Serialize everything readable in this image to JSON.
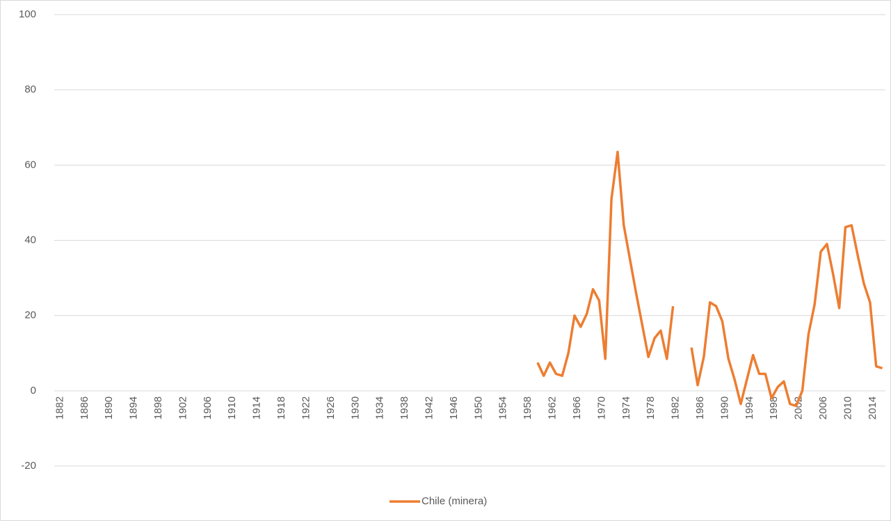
{
  "chart_data": {
    "type": "line",
    "categories": [
      "1882",
      null,
      null,
      null,
      "1886",
      null,
      null,
      null,
      "1890",
      null,
      null,
      null,
      "1894",
      null,
      null,
      null,
      "1898",
      null,
      null,
      null,
      "1902",
      null,
      null,
      null,
      "1906",
      null,
      null,
      null,
      "1910",
      null,
      null,
      null,
      "1914",
      null,
      null,
      null,
      "1918",
      null,
      null,
      null,
      "1922",
      null,
      null,
      null,
      "1926",
      null,
      null,
      null,
      "1930",
      null,
      null,
      null,
      "1934",
      null,
      null,
      null,
      "1938",
      null,
      null,
      null,
      "1942",
      null,
      null,
      null,
      "1946",
      null,
      null,
      null,
      "1950",
      null,
      null,
      null,
      "1954",
      null,
      null,
      null,
      "1958",
      null,
      null,
      null,
      "1962",
      null,
      null,
      null,
      "1966",
      null,
      null,
      null,
      "1970",
      null,
      null,
      null,
      "1974",
      null,
      null,
      null,
      "1978",
      null,
      null,
      null,
      "1982",
      null,
      null,
      null,
      "1986",
      null,
      null,
      null,
      "1990",
      null,
      null,
      null,
      "1994",
      null,
      null,
      null,
      "1998",
      null,
      null,
      null,
      "2002",
      null,
      null,
      null,
      "2006",
      null,
      null,
      null,
      "2010",
      null,
      null,
      null,
      "2014",
      null,
      null
    ],
    "series": [
      {
        "name": "Chile (minera)",
        "color": "#ed7d31",
        "values": [
          null,
          null,
          null,
          null,
          null,
          null,
          null,
          null,
          null,
          null,
          null,
          null,
          null,
          null,
          null,
          null,
          null,
          null,
          null,
          null,
          null,
          null,
          null,
          null,
          null,
          null,
          null,
          null,
          null,
          null,
          null,
          null,
          null,
          null,
          null,
          null,
          null,
          null,
          null,
          null,
          null,
          null,
          null,
          null,
          null,
          null,
          null,
          null,
          null,
          null,
          null,
          null,
          null,
          null,
          null,
          null,
          null,
          null,
          null,
          null,
          null,
          null,
          null,
          null,
          null,
          null,
          null,
          null,
          null,
          null,
          null,
          null,
          null,
          null,
          null,
          null,
          null,
          null,
          7.5,
          4,
          7.5,
          4.5,
          4,
          10,
          20,
          17,
          20.5,
          27,
          24,
          8.5,
          51,
          63.5,
          44,
          35,
          26,
          17.5,
          9,
          14,
          16,
          8.5,
          22.5,
          null,
          null,
          11.5,
          1.5,
          9,
          23.5,
          22.5,
          18.5,
          8.5,
          3,
          -3.5,
          3,
          9.5,
          4.5,
          4.5,
          -2,
          1,
          2.5,
          -3.5,
          -4,
          0,
          15,
          23,
          37,
          39,
          31,
          22,
          43.5,
          44,
          36,
          28.5,
          23.5,
          6.5,
          6
        ]
      }
    ],
    "ylim": [
      -20,
      100
    ],
    "yticks": [
      -20,
      0,
      20,
      40,
      60,
      80,
      100
    ],
    "grid": true,
    "legend": "bottom"
  }
}
